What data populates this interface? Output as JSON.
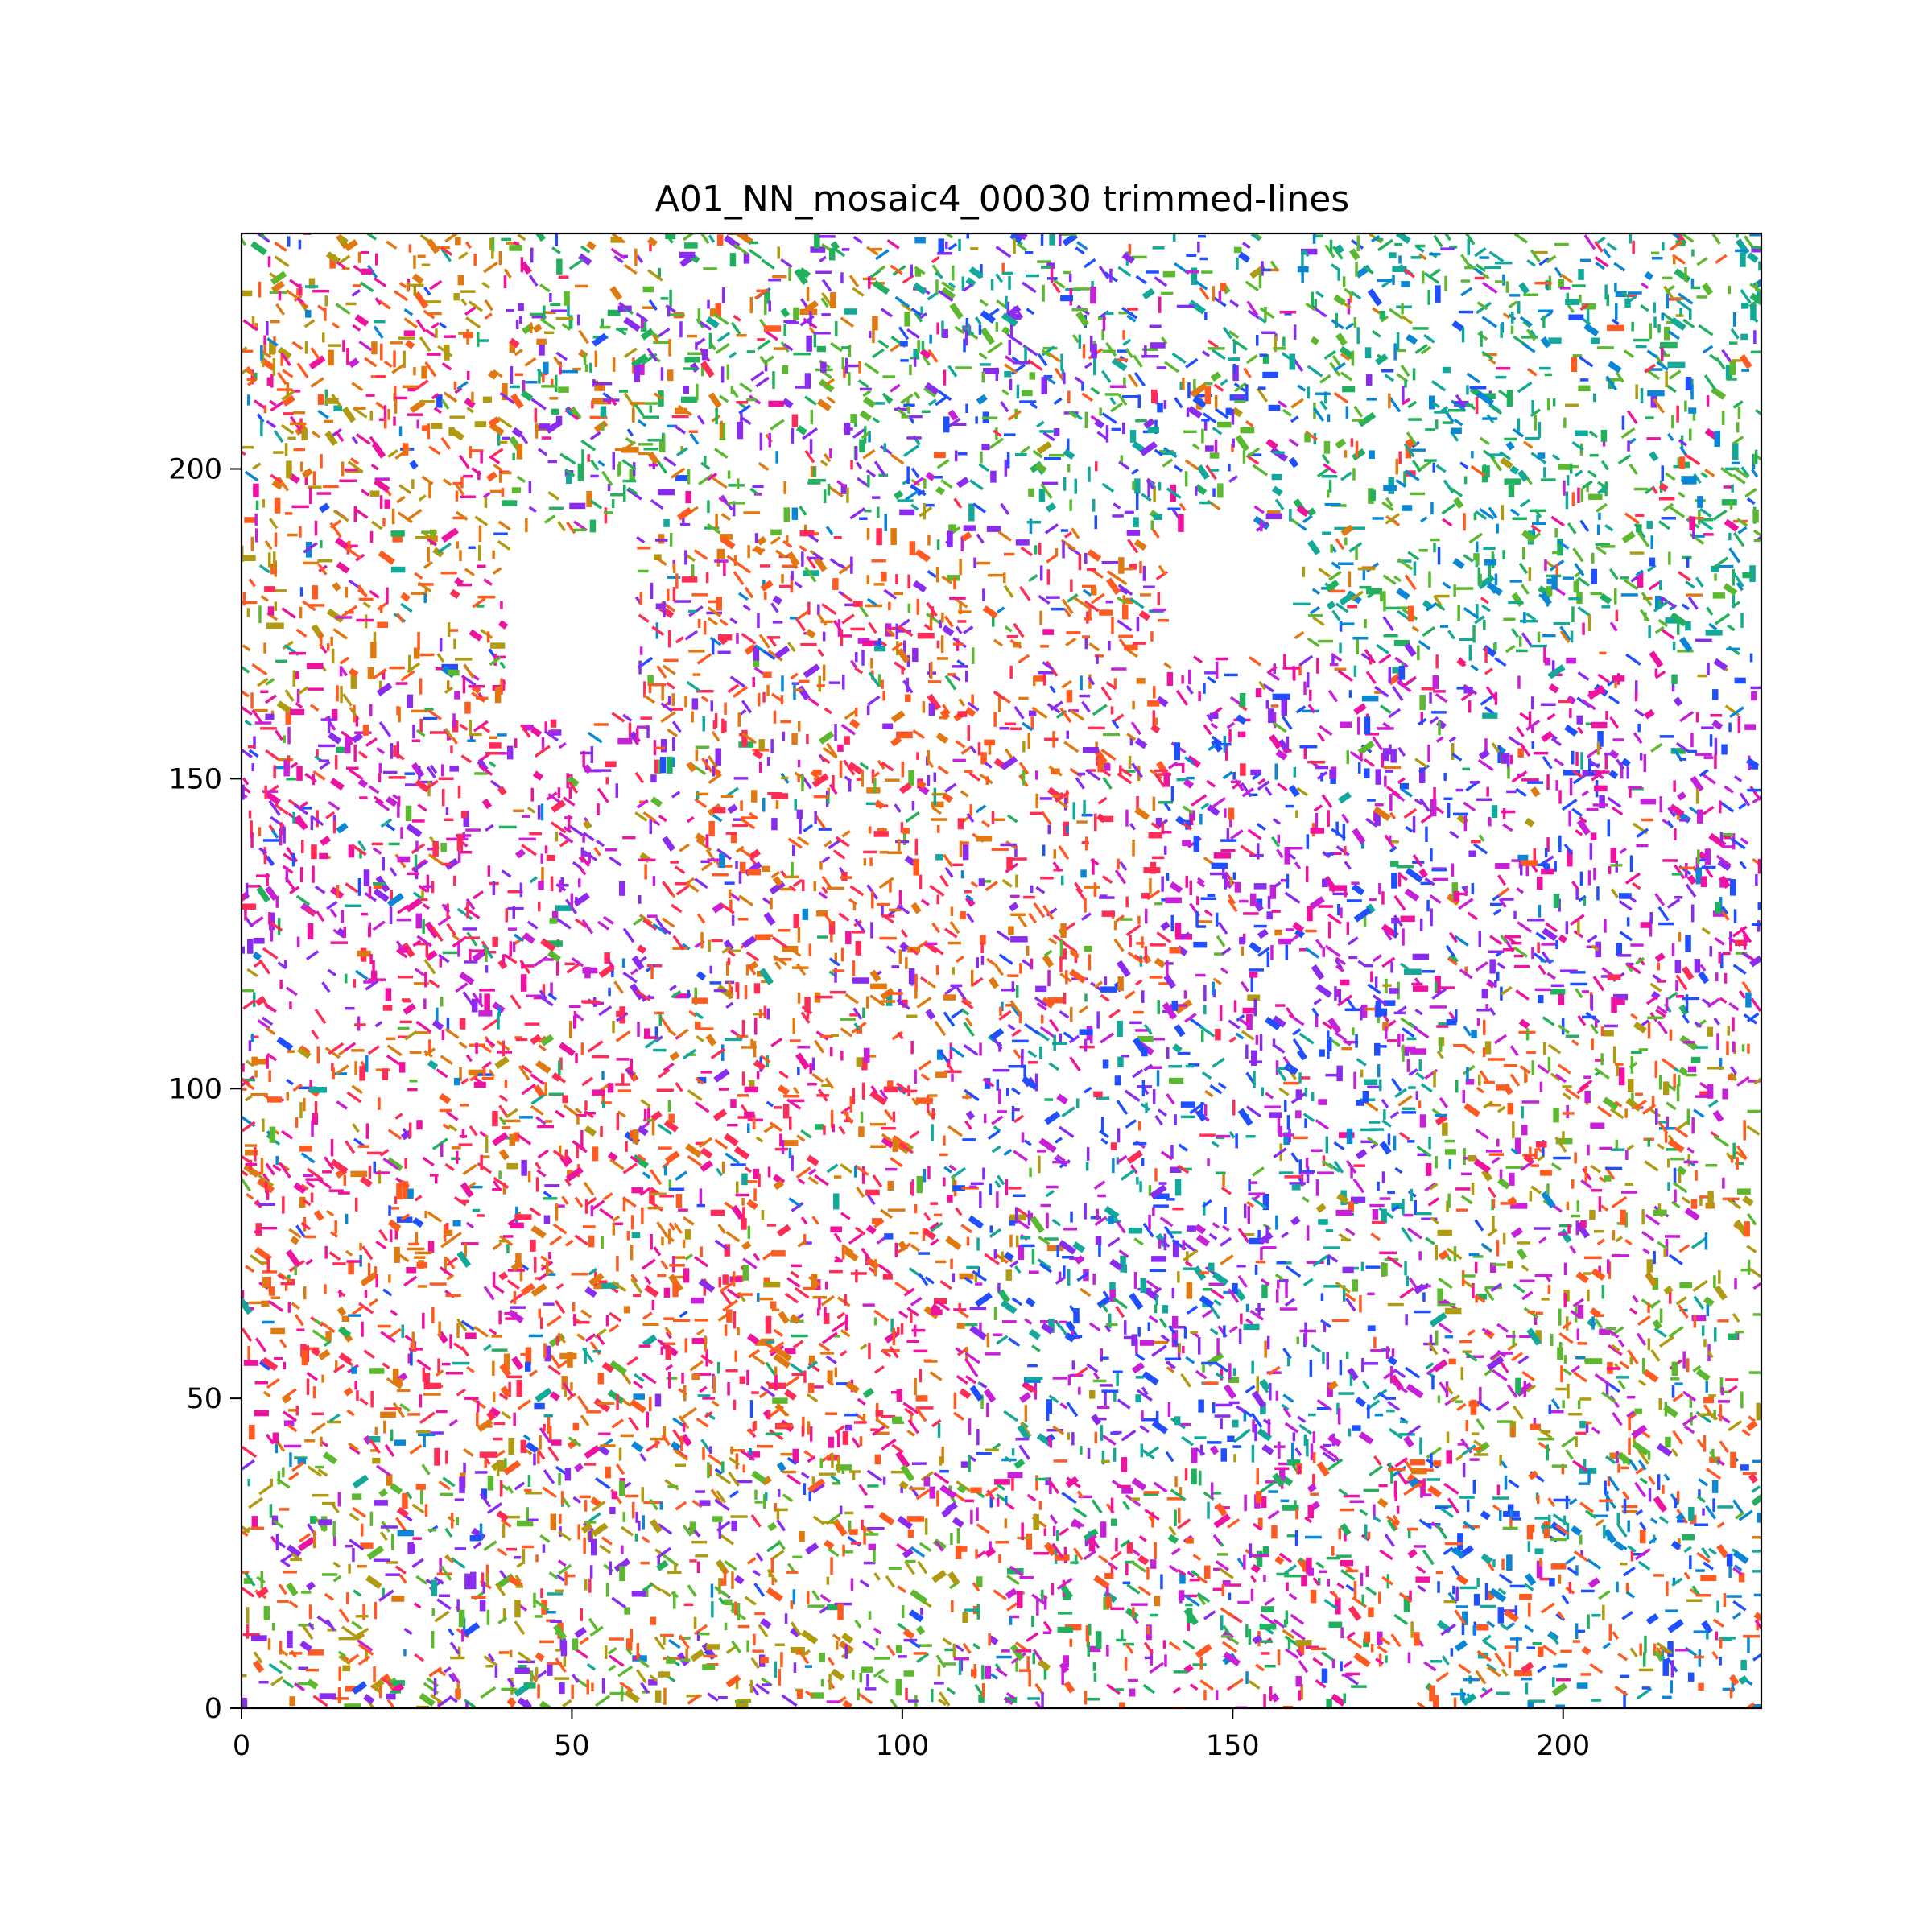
{
  "chart_data": {
    "type": "scatter",
    "title": "A01_NN_mosaic4_00030 trimmed-lines",
    "xlabel": "",
    "ylabel": "",
    "xlim": [
      0,
      230
    ],
    "ylim": [
      0,
      238
    ],
    "x_ticks": [
      0,
      50,
      100,
      150,
      200
    ],
    "y_ticks": [
      0,
      50,
      100,
      150,
      200
    ],
    "x_tick_labels": [
      "0",
      "50",
      "100",
      "150",
      "200"
    ],
    "y_tick_labels": [
      "0",
      "50",
      "100",
      "150",
      "200"
    ],
    "grid": false,
    "legend": "none",
    "palette": [
      "#ff2d55",
      "#ff5a1f",
      "#e07a10",
      "#b09a10",
      "#5cb82e",
      "#21b05e",
      "#12a89a",
      "#0a86d6",
      "#1f4fff",
      "#8c2bf0",
      "#c81fd8",
      "#ee12a0"
    ],
    "regions": [
      {
        "x": [
          0,
          40
        ],
        "y": [
          160,
          238
        ],
        "colors": [
          "#e07a10",
          "#ff5a1f",
          "#b09a10",
          "#ee12a0"
        ]
      },
      {
        "x": [
          40,
          100
        ],
        "y": [
          190,
          238
        ],
        "colors": [
          "#5cb82e",
          "#e07a10",
          "#21b05e",
          "#8c2bf0"
        ]
      },
      {
        "x": [
          100,
          160
        ],
        "y": [
          190,
          238
        ],
        "colors": [
          "#8c2bf0",
          "#1f4fff",
          "#12a89a",
          "#5cb82e"
        ]
      },
      {
        "x": [
          160,
          230
        ],
        "y": [
          170,
          238
        ],
        "colors": [
          "#21b05e",
          "#12a89a",
          "#0a86d6",
          "#5cb82e"
        ]
      },
      {
        "x": [
          0,
          60
        ],
        "y": [
          110,
          160
        ],
        "colors": [
          "#ee12a0",
          "#c81fd8",
          "#8c2bf0",
          "#ff2d55"
        ]
      },
      {
        "x": [
          60,
          140
        ],
        "y": [
          110,
          190
        ],
        "colors": [
          "#ff2d55",
          "#ff5a1f",
          "#e07a10",
          "#8c2bf0"
        ]
      },
      {
        "x": [
          140,
          230
        ],
        "y": [
          110,
          170
        ],
        "colors": [
          "#c81fd8",
          "#8c2bf0",
          "#1f4fff",
          "#ee12a0"
        ]
      },
      {
        "x": [
          0,
          110
        ],
        "y": [
          40,
          110
        ],
        "colors": [
          "#ff2d55",
          "#ff5a1f",
          "#e07a10",
          "#ee12a0"
        ]
      },
      {
        "x": [
          110,
          180
        ],
        "y": [
          40,
          110
        ],
        "colors": [
          "#1f4fff",
          "#8c2bf0",
          "#c81fd8",
          "#12a89a"
        ]
      },
      {
        "x": [
          180,
          230
        ],
        "y": [
          40,
          110
        ],
        "colors": [
          "#b09a10",
          "#5cb82e",
          "#ff5a1f",
          "#c81fd8"
        ]
      },
      {
        "x": [
          0,
          110
        ],
        "y": [
          0,
          40
        ],
        "colors": [
          "#ff5a1f",
          "#5cb82e",
          "#8c2bf0",
          "#b09a10"
        ]
      },
      {
        "x": [
          110,
          180
        ],
        "y": [
          0,
          40
        ],
        "colors": [
          "#ee12a0",
          "#ff5a1f",
          "#21b05e",
          "#c81fd8"
        ]
      },
      {
        "x": [
          180,
          230
        ],
        "y": [
          0,
          40
        ],
        "colors": [
          "#0a86d6",
          "#1f4fff",
          "#ff5a1f",
          "#12a89a"
        ]
      }
    ]
  }
}
